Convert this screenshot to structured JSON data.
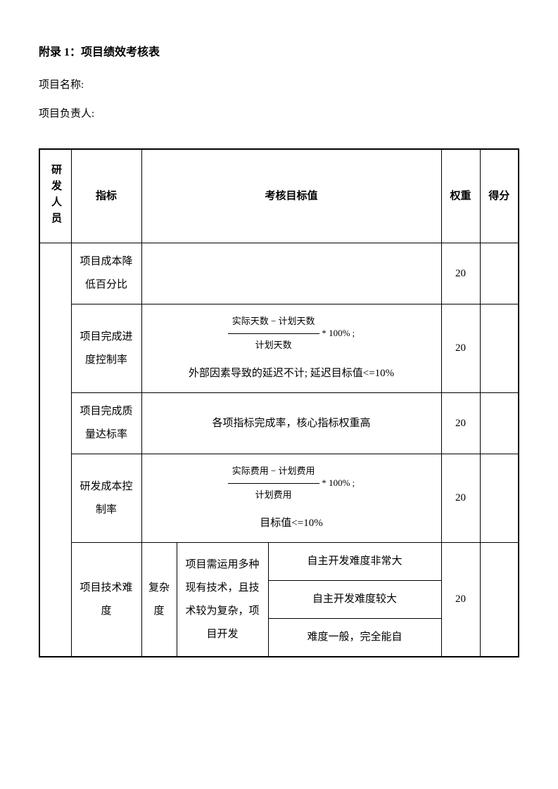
{
  "header": {
    "title": "附录 1：项目绩效考核表",
    "project_name_label": "项目名称:",
    "project_manager_label": "项目负责人:"
  },
  "table": {
    "columns": {
      "category": "研发人员",
      "metric": "指标",
      "target": "考核目标值",
      "weight": "权重",
      "score": "得分"
    },
    "rows": [
      {
        "metric": "项目成本降低百分比",
        "target": "",
        "weight": "20",
        "score": ""
      },
      {
        "metric": "项目完成进度控制率",
        "formula_num": "实际天数 − 计划天数",
        "formula_den": "计划天数",
        "formula_suffix": " * 100% ;",
        "note": "外部因素导致的延迟不计; 延迟目标值<=10%",
        "weight": "20",
        "score": ""
      },
      {
        "metric": "项目完成质量达标率",
        "target": "各项指标完成率，核心指标权重高",
        "weight": "20",
        "score": ""
      },
      {
        "metric": "研发成本控制率",
        "formula_num": "实际费用 − 计划费用",
        "formula_den": "计划费用",
        "formula_suffix": " * 100% ;",
        "note": "目标值<=10%",
        "weight": "20",
        "score": ""
      },
      {
        "metric": "项目技术难度",
        "sub_label": "复杂度",
        "sub_desc": "项目需运用多种现有技术，且技术较为复杂，项目开发",
        "sub_items": [
          "自主开发难度非常大",
          "自主开发难度较大",
          "难度一般，完全能自"
        ],
        "weight": "20",
        "score": ""
      }
    ]
  },
  "style": {
    "background_color": "#ffffff",
    "text_color": "#000000",
    "border_color": "#000000",
    "font_family": "SimSun",
    "title_fontsize": 16,
    "body_fontsize": 15,
    "formula_fontsize": 13,
    "line_height": 2.2
  }
}
